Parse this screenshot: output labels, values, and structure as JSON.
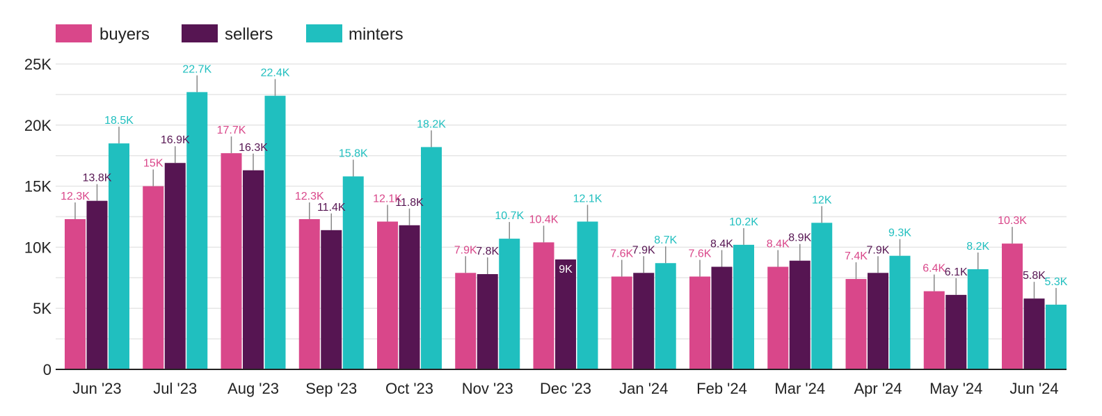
{
  "colors": {
    "buyers": "#d9478a",
    "sellers": "#561552",
    "minters": "#20bfbf",
    "grid": "#e6e6e6",
    "axis": "#222222",
    "leader": "#888888"
  },
  "chart_data": {
    "type": "bar",
    "categories": [
      "Jun '23",
      "Jul '23",
      "Aug '23",
      "Sep '23",
      "Oct '23",
      "Nov '23",
      "Dec '23",
      "Jan '24",
      "Feb '24",
      "Mar '24",
      "Apr '24",
      "May '24",
      "Jun '24"
    ],
    "series": [
      {
        "name": "buyers",
        "values": [
          12300,
          15000,
          17700,
          12300,
          12100,
          7900,
          10400,
          7600,
          7600,
          8400,
          7400,
          6400,
          10300
        ],
        "labels": [
          "12.3K",
          "15K",
          "17.7K",
          "12.3K",
          "12.1K",
          "7.9K",
          "10.4K",
          "7.6K",
          "7.6K",
          "8.4K",
          "7.4K",
          "6.4K",
          "10.3K"
        ]
      },
      {
        "name": "sellers",
        "values": [
          13800,
          16900,
          16300,
          11400,
          11800,
          7800,
          9000,
          7900,
          8400,
          8900,
          7900,
          6100,
          5800
        ],
        "labels": [
          "13.8K",
          "16.9K",
          "16.3K",
          "11.4K",
          "11.8K",
          "7.8K",
          "9K",
          "7.9K",
          "8.4K",
          "8.9K",
          "7.9K",
          "6.1K",
          "5.8K"
        ]
      },
      {
        "name": "minters",
        "values": [
          18500,
          22700,
          22400,
          15800,
          18200,
          10700,
          12100,
          8700,
          10200,
          12000,
          9300,
          8200,
          5300
        ],
        "labels": [
          "18.5K",
          "22.7K",
          "22.4K",
          "15.8K",
          "18.2K",
          "10.7K",
          "12.1K",
          "8.7K",
          "10.2K",
          "12K",
          "9.3K",
          "8.2K",
          "5.3K"
        ]
      }
    ],
    "ylim": [
      0,
      25000
    ],
    "yticks": [
      0,
      5000,
      10000,
      15000,
      20000,
      25000
    ],
    "ytick_labels": [
      "0",
      "5K",
      "10K",
      "15K",
      "20K",
      "25K"
    ],
    "grid": true,
    "legend_position": "top-left"
  }
}
